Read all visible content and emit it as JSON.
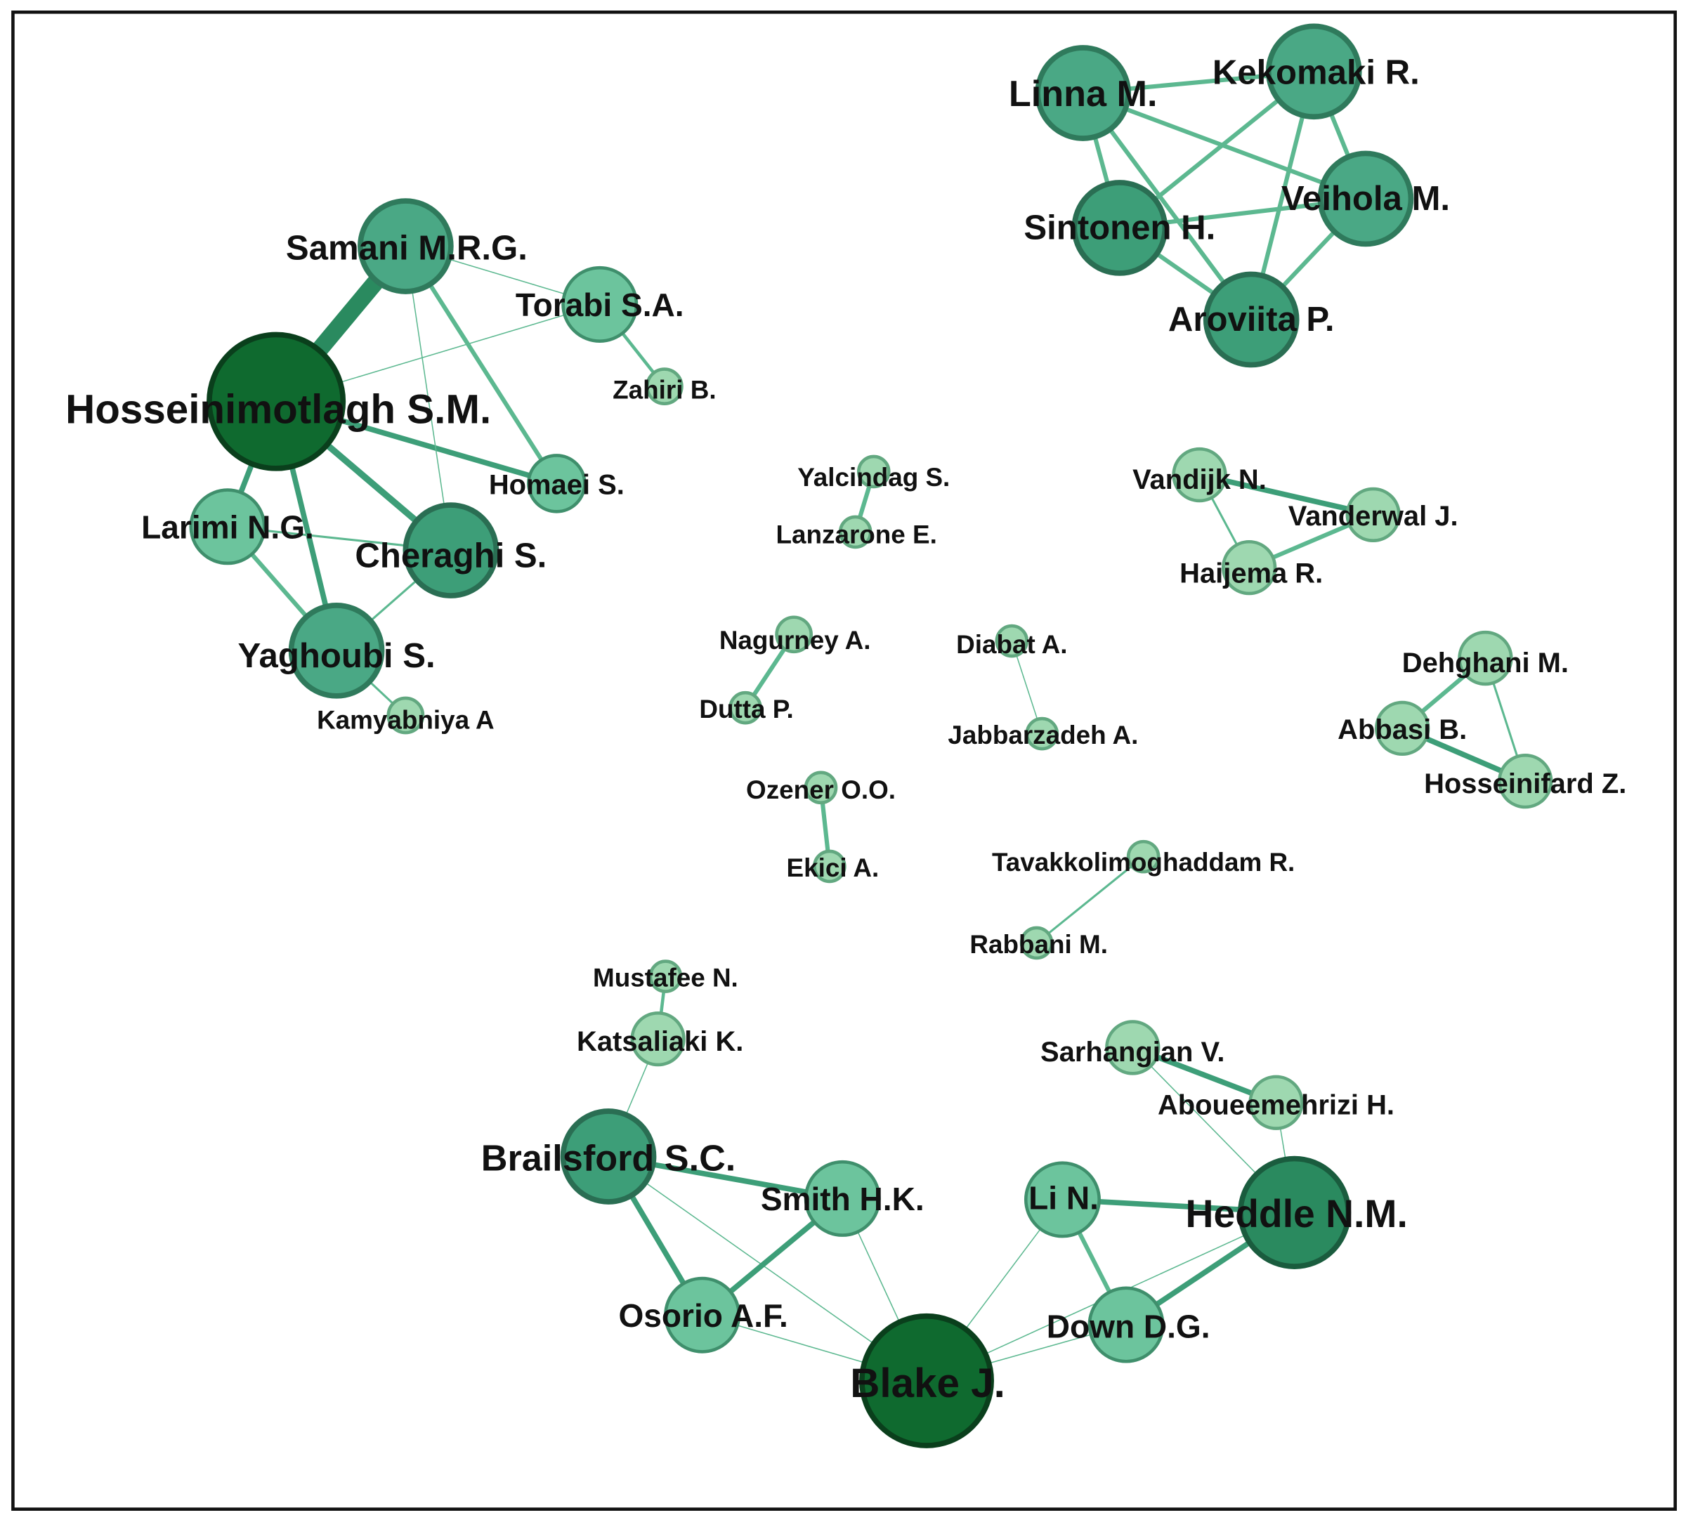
{
  "nodes": [
    {
      "label": "Hosseinimotlagh S.M."
    },
    {
      "label": "Samani M.R.G."
    },
    {
      "label": "Torabi S.A."
    },
    {
      "label": "Zahiri B."
    },
    {
      "label": "Homaei S."
    },
    {
      "label": "Larimi N.G."
    },
    {
      "label": "Cheraghi S."
    },
    {
      "label": "Yaghoubi S."
    },
    {
      "label": "Kamyabniya A"
    },
    {
      "label": "Linna M."
    },
    {
      "label": "Kekomaki R."
    },
    {
      "label": "Sintonen H."
    },
    {
      "label": "Veihola M."
    },
    {
      "label": "Aroviita P."
    },
    {
      "label": "Yalcindag S."
    },
    {
      "label": "Lanzarone E."
    },
    {
      "label": "Nagurney A."
    },
    {
      "label": "Dutta P."
    },
    {
      "label": "Diabat A."
    },
    {
      "label": "Jabbarzadeh A."
    },
    {
      "label": "Ozener O.O."
    },
    {
      "label": "Ekici A."
    },
    {
      "label": "Tavakkolimoghaddam R."
    },
    {
      "label": "Rabbani M."
    },
    {
      "label": "Vandijk N."
    },
    {
      "label": "Vanderwal J."
    },
    {
      "label": "Haijema R."
    },
    {
      "label": "Dehghani M."
    },
    {
      "label": "Abbasi B."
    },
    {
      "label": "Hosseinifard Z."
    },
    {
      "label": "Mustafee N."
    },
    {
      "label": "Katsaliaki K."
    },
    {
      "label": "Brailsford S.C."
    },
    {
      "label": "Smith H.K."
    },
    {
      "label": "Osorio A.F."
    },
    {
      "label": "Blake J."
    },
    {
      "label": "Li N."
    },
    {
      "label": "Heddle N.M."
    },
    {
      "label": "Down D.G."
    },
    {
      "label": "Sarhangian V."
    },
    {
      "label": "Aboueemehrizi H."
    }
  ]
}
